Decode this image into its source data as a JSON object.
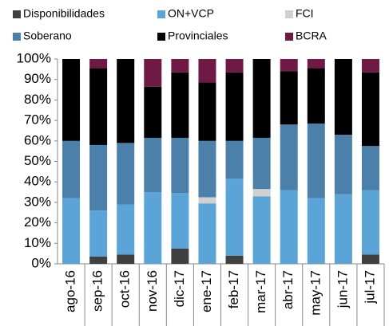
{
  "chart_data": {
    "type": "stacked_bar",
    "categories": [
      "ago-16",
      "sep-16",
      "oct-16",
      "nov-16",
      "dic-17",
      "ene-17",
      "feb-17",
      "mar-17",
      "abr-17",
      "may-17",
      "jun-17",
      "jul-17"
    ],
    "series": [
      {
        "name": "Disponibilidades",
        "color": "#404040",
        "values": [
          0,
          3.5,
          4.5,
          0,
          7.5,
          0,
          4,
          0,
          0,
          0,
          0,
          4.5
        ]
      },
      {
        "name": "ON+VCP",
        "color": "#5ba4d8",
        "values": [
          32,
          22.5,
          24.5,
          35,
          27,
          29.5,
          37.5,
          33,
          36,
          32,
          34,
          31.5
        ]
      },
      {
        "name": "FCI",
        "color": "#d0d0d0",
        "values": [
          0,
          0,
          0,
          0,
          0,
          3,
          0,
          3.5,
          0,
          0,
          0,
          0
        ]
      },
      {
        "name": "Soberano",
        "color": "#4a80aa",
        "values": [
          28,
          32,
          30,
          26.5,
          27,
          27.5,
          18.5,
          25,
          32,
          36.5,
          29,
          21.5
        ]
      },
      {
        "name": "Provinciales",
        "color": "#000000",
        "values": [
          40,
          37.5,
          41,
          25,
          32,
          28.5,
          33.5,
          38.5,
          26,
          27,
          37,
          36
        ]
      },
      {
        "name": "BCRA",
        "color": "#6e1a44",
        "values": [
          0,
          4.5,
          0,
          13.5,
          6.5,
          11.5,
          6.5,
          0,
          6,
          4.5,
          0,
          6.5
        ]
      }
    ],
    "ylim": [
      0,
      100
    ],
    "yticks": [
      {
        "value": 0,
        "label": "0%"
      },
      {
        "value": 10,
        "label": "10%"
      },
      {
        "value": 20,
        "label": "20%"
      },
      {
        "value": 30,
        "label": "30%"
      },
      {
        "value": 40,
        "label": "40%"
      },
      {
        "value": 50,
        "label": "50%"
      },
      {
        "value": 60,
        "label": "60%"
      },
      {
        "value": 70,
        "label": "70%"
      },
      {
        "value": 80,
        "label": "80%"
      },
      {
        "value": 90,
        "label": "90%"
      },
      {
        "value": 100,
        "label": "100%"
      }
    ]
  }
}
